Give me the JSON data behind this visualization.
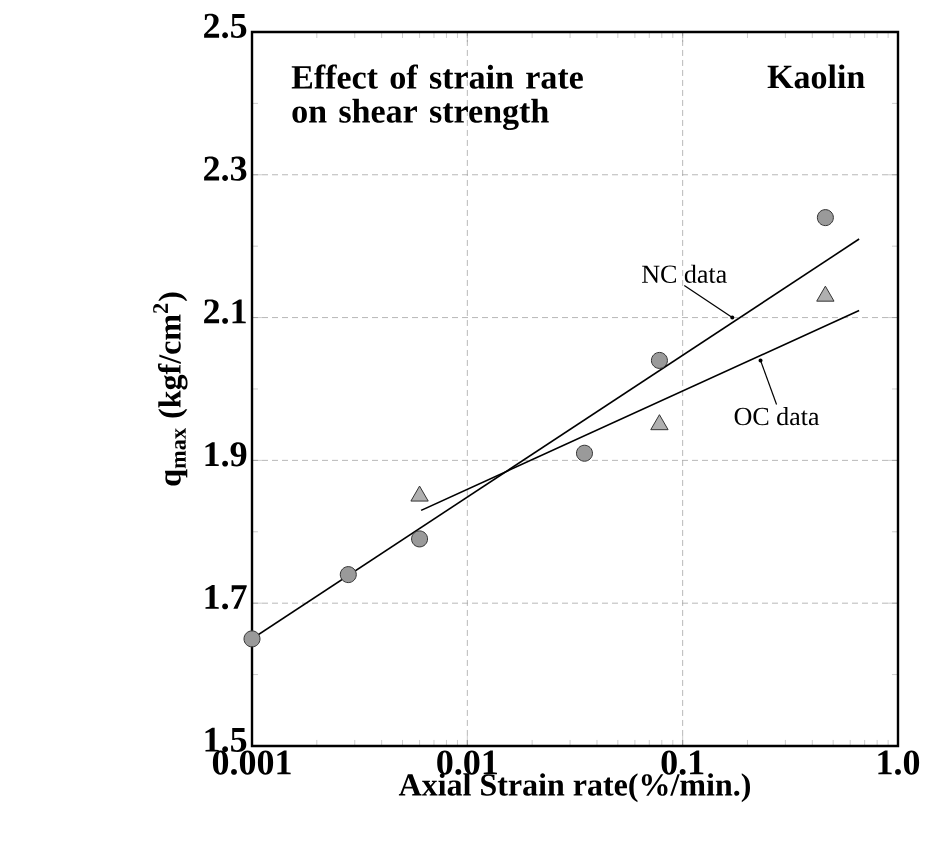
{
  "chart_data": {
    "type": "scatter",
    "title": "Effect of strain rate on shear strength",
    "xlabel": "Axial Strain rate(%/min.)",
    "ylabel": "q$_{max}$ (kgf/cm$^{2}$)",
    "annotations": [
      "Kaolin",
      {
        "text": "NC data",
        "x": 0.17,
        "y": 2.1
      },
      {
        "text": "OC data",
        "x": 0.23,
        "y": 2.04
      }
    ],
    "log": "x",
    "xlim": [
      0.001,
      1.0
    ],
    "ylim": [
      1.5,
      2.5
    ],
    "xticks": [
      0.001,
      0.01,
      0.1,
      {
        "value": 1,
        "label": "1.0"
      }
    ],
    "yticks": [
      1.5,
      1.7,
      1.9,
      2.1,
      2.3,
      2.5
    ],
    "grid": true,
    "series": [
      {
        "marker": "circle",
        "color": "#9a9a9a",
        "x": [
          0.001,
          0.0028,
          0.006,
          0.035,
          0.078,
          0.46
        ],
        "values": [
          1.65,
          1.74,
          1.79,
          1.91,
          2.04,
          2.24
        ]
      },
      {
        "marker": "triangle",
        "color": "#b0b0b0",
        "x": [
          0.006,
          0.078,
          0.46
        ],
        "values": [
          1.85,
          1.95,
          2.13
        ]
      },
      {
        "type": "line",
        "marker": "none",
        "color": "#000000",
        "x": [
          0.001,
          0.66
        ],
        "values": [
          1.65,
          2.21
        ]
      },
      {
        "type": "line",
        "marker": "none",
        "color": "#000000",
        "x": [
          0.0061,
          0.66
        ],
        "values": [
          1.83,
          2.11
        ]
      }
    ]
  }
}
